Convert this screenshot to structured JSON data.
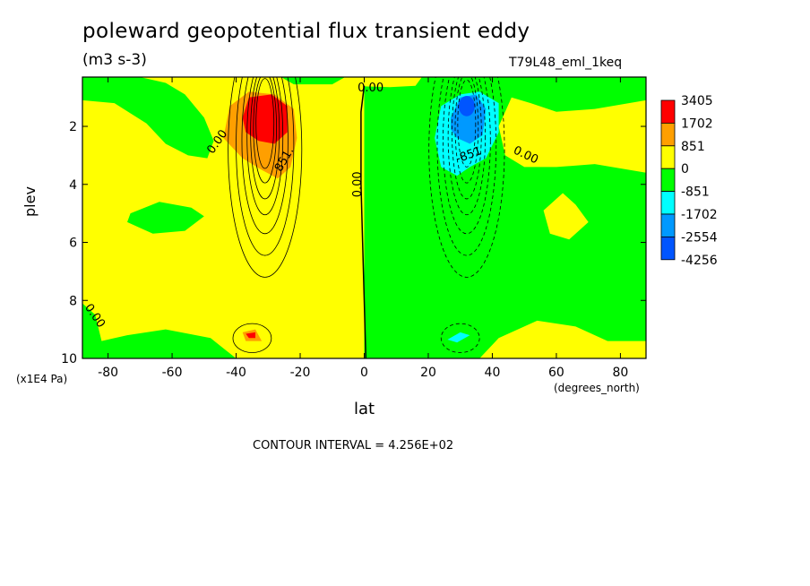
{
  "title": "poleward geopotential flux transient eddy",
  "units": "(m3 s-3)",
  "run_id": "T79L48_eml_1keq",
  "footer": "CONTOUR INTERVAL = 4.256E+02",
  "colors": {
    "level_5": "#ff0000",
    "level_4": "#ff9f00",
    "level_3": "#ffff00",
    "level_2": "#00ff00",
    "level_1": "#00ffff",
    "level_0": "#0099ff",
    "level_min": "#0055ff"
  },
  "chart_data": {
    "type": "contour",
    "title": "poleward geopotential flux transient eddy",
    "units": "(m3 s-3)",
    "xlabel": "lat",
    "x_units": "(degrees_north)",
    "ylabel": "plev",
    "y_multiplier": "(x1E4 Pa)",
    "xlim": [
      -88,
      88
    ],
    "ylim": [
      10,
      0.3
    ],
    "y_inverted": true,
    "xticks": [
      -80,
      -60,
      -40,
      -20,
      0,
      20,
      40,
      60,
      80
    ],
    "yticks": [
      2,
      4,
      6,
      8,
      10
    ],
    "colorbar_levels": [
      "3405",
      "1702",
      "851",
      "0",
      "-851",
      "-1702",
      "-2554",
      "-4256"
    ],
    "contour_interval": 425.6,
    "contour_labels": [
      {
        "text": "0.00",
        "lat": -1,
        "plev": 4.0,
        "rotate": -90
      },
      {
        "text": "0.00",
        "lat": 2,
        "plev": 0.8,
        "rotate": 0
      },
      {
        "text": "0.00",
        "lat": -45,
        "plev": 2.6,
        "rotate": -55
      },
      {
        "text": "0.00",
        "lat": 50,
        "plev": 3.1,
        "rotate": 25
      },
      {
        "text": "0.00",
        "lat": -85,
        "plev": 8.6,
        "rotate": 55
      },
      {
        "text": "851.",
        "lat": -24,
        "plev": 3.2,
        "rotate": -60
      },
      {
        "text": "-851",
        "lat": 33,
        "plev": 3.1,
        "rotate": -20
      }
    ],
    "features": [
      {
        "name": "positive-max",
        "lat": -31,
        "plev": 1.8,
        "value_level": "3405"
      },
      {
        "name": "negative-min",
        "lat": 31,
        "plev": 1.8,
        "value_level": "-4256"
      }
    ]
  }
}
